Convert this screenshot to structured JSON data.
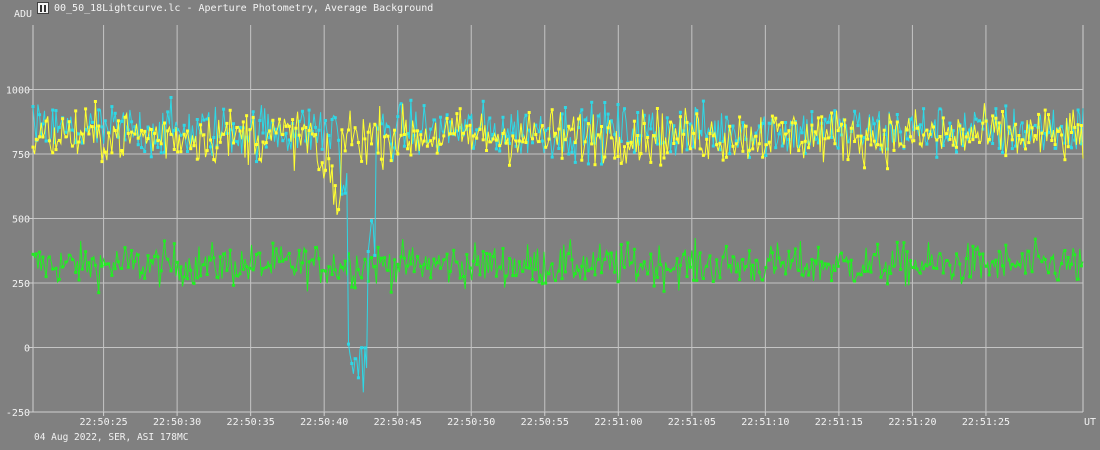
{
  "window": {
    "title": "00_50_18Lightcurve.lc - Aperture Photometry, Average Background",
    "icon": "lightcurve-app-icon"
  },
  "footer": "04 Aug 2022, SER, ASI 178MC",
  "chart_data": {
    "type": "line",
    "ylabel": "ADU",
    "xlabel": "UT",
    "ylim": [
      -250,
      1250
    ],
    "xlim": [
      "22:50:20.2",
      "22:51:31.6"
    ],
    "grid": true,
    "y_ticks": [
      -250,
      0,
      250,
      500,
      750,
      1000
    ],
    "x_ticks": [
      "22:50:25",
      "22:50:30",
      "22:50:35",
      "22:50:40",
      "22:50:45",
      "22:50:50",
      "22:50:55",
      "22:51:00",
      "22:51:05",
      "22:51:10",
      "22:51:15",
      "22:51:20",
      "22:51:25"
    ],
    "series": [
      {
        "color": "#2ed8e6",
        "baseline": 840,
        "noise": 95,
        "points": 640,
        "anomalies": [
          {
            "start": "22:50:41.0",
            "end": "22:50:41.6",
            "level": 640
          },
          {
            "start": "22:50:41.6",
            "end": "22:50:42.9",
            "level": -50,
            "noise": 110
          },
          {
            "start": "22:50:42.9",
            "end": "22:50:43.5",
            "level": 420
          }
        ]
      },
      {
        "color": "#ffff30",
        "baseline": 820,
        "noise": 95,
        "points": 640,
        "anomalies": [
          {
            "start": "22:50:39.5",
            "end": "22:50:40.6",
            "level": 680
          },
          {
            "start": "22:50:40.6",
            "end": "22:50:41.2",
            "level": 570
          }
        ]
      },
      {
        "color": "#22ee22",
        "baseline": 320,
        "noise": 75,
        "points": 640,
        "anomalies": []
      }
    ]
  }
}
